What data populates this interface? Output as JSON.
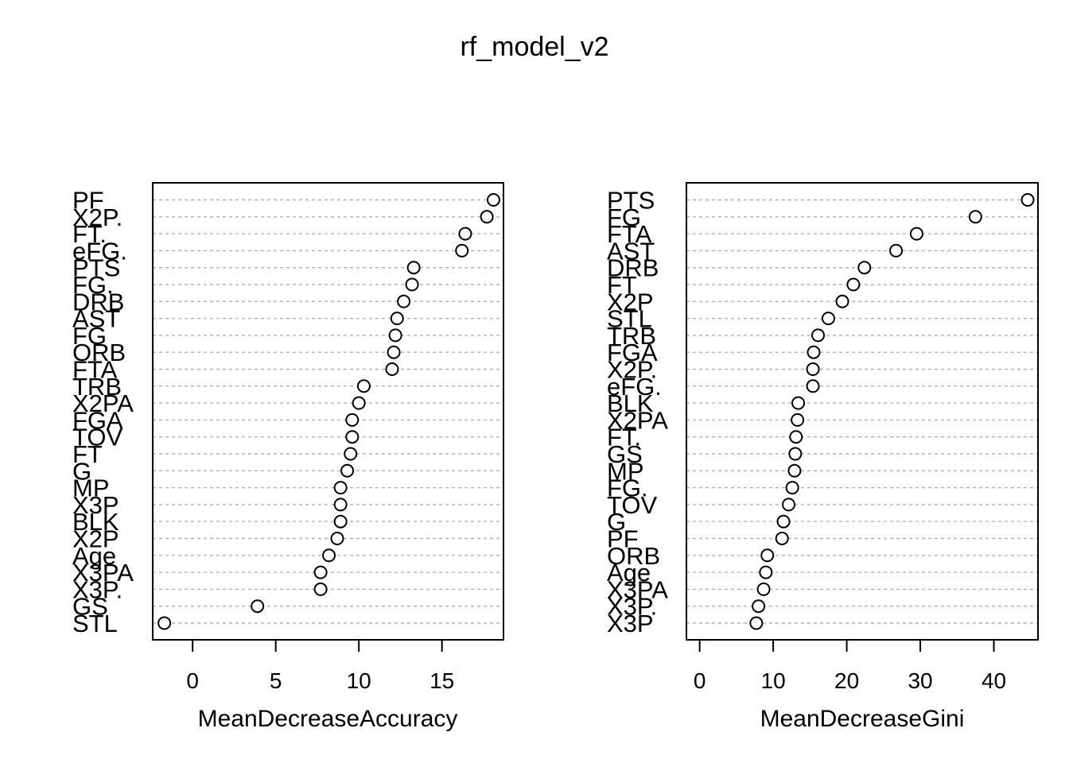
{
  "title": "rf_model_v2",
  "chart_data": [
    {
      "type": "scatter",
      "xlabel": "MeanDecreaseAccuracy",
      "xticks": [
        0,
        5,
        10,
        15
      ],
      "xlim": [
        -2.4,
        18.7
      ],
      "grid": "dashed guide line per variable",
      "variables": [
        "PF",
        "X2P.",
        "FT.",
        "eFG.",
        "PTS",
        "FG.",
        "DRB",
        "AST",
        "FG",
        "ORB",
        "FTA",
        "TRB",
        "X2PA",
        "FGA",
        "TOV",
        "FT",
        "G",
        "MP",
        "X3P",
        "BLK",
        "X2P",
        "Age",
        "X3PA",
        "X3P.",
        "GS",
        "STL"
      ],
      "values": [
        18.1,
        17.7,
        16.4,
        16.2,
        13.3,
        13.2,
        12.7,
        12.3,
        12.2,
        12.1,
        12.0,
        10.3,
        10.0,
        9.6,
        9.6,
        9.5,
        9.3,
        8.9,
        8.9,
        8.9,
        8.7,
        8.2,
        7.7,
        7.7,
        3.9,
        -1.7
      ]
    },
    {
      "type": "scatter",
      "xlabel": "MeanDecreaseGini",
      "xticks": [
        0,
        10,
        20,
        30,
        40
      ],
      "xlim": [
        -1.8,
        46.0
      ],
      "grid": "dashed guide line per variable",
      "variables": [
        "PTS",
        "FG",
        "FTA",
        "AST",
        "DRB",
        "FT",
        "X2P",
        "STL",
        "TRB",
        "FGA",
        "X2P.",
        "eFG.",
        "BLK",
        "X2PA",
        "FT.",
        "GS",
        "MP",
        "FG.",
        "TOV",
        "G",
        "PF",
        "ORB",
        "Age",
        "X3PA",
        "X3P.",
        "X3P"
      ],
      "values": [
        44.6,
        37.5,
        29.5,
        26.7,
        22.4,
        20.9,
        19.4,
        17.5,
        16.1,
        15.5,
        15.4,
        15.4,
        13.4,
        13.3,
        13.1,
        13.0,
        12.9,
        12.6,
        12.1,
        11.4,
        11.2,
        9.2,
        9.0,
        8.7,
        8.0,
        7.7
      ]
    }
  ]
}
